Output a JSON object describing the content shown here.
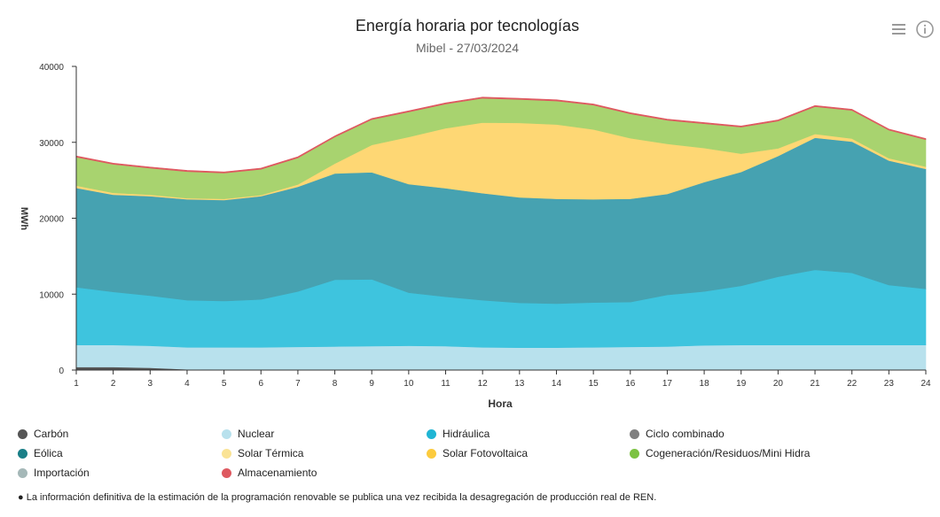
{
  "header": {
    "title": "Energía horaria por tecnologías",
    "subtitle": "Mibel - 27/03/2024"
  },
  "toolbar": {
    "menu_icon": "hamburger-menu-icon",
    "info_icon": "info-circle-icon"
  },
  "footnote": {
    "bullet": "●",
    "text": "La información definitiva de la estimación de la programación renovable se publica una vez recibida la desagregación de producción real de REN."
  },
  "chart_data": {
    "type": "area",
    "stacked": true,
    "xlabel": "Hora",
    "ylabel": "MWh",
    "x": [
      1,
      2,
      3,
      4,
      5,
      6,
      7,
      8,
      9,
      10,
      11,
      12,
      13,
      14,
      15,
      16,
      17,
      18,
      19,
      20,
      21,
      22,
      23,
      24
    ],
    "ylim": [
      0,
      40000
    ],
    "yticks": [
      0,
      10000,
      20000,
      30000,
      40000
    ],
    "grid": false,
    "legend_position": "bottom",
    "series": [
      {
        "name": "Carbón",
        "color": "#555555",
        "values": [
          400,
          400,
          300,
          100,
          50,
          50,
          50,
          50,
          50,
          50,
          50,
          50,
          50,
          50,
          50,
          50,
          50,
          50,
          50,
          50,
          50,
          50,
          50,
          50
        ]
      },
      {
        "name": "Nuclear",
        "color": "#b8e1ed",
        "values": [
          2900,
          2900,
          2900,
          2900,
          2950,
          2950,
          3000,
          3050,
          3100,
          3150,
          3100,
          2950,
          2900,
          2900,
          2950,
          3000,
          3050,
          3200,
          3250,
          3250,
          3250,
          3250,
          3250,
          3250
        ]
      },
      {
        "name": "Hidráulica",
        "color": "#3ec4de",
        "values": [
          7600,
          7000,
          6600,
          6200,
          6100,
          6300,
          7300,
          8800,
          8800,
          7000,
          6500,
          6200,
          5900,
          5800,
          5900,
          5900,
          6800,
          7100,
          7800,
          9000,
          9900,
          9500,
          7900,
          7400
        ]
      },
      {
        "name": "Ciclo combinado",
        "color": "#7f7f7f",
        "values": [
          0,
          0,
          0,
          0,
          0,
          0,
          0,
          0,
          0,
          0,
          0,
          0,
          0,
          0,
          0,
          0,
          0,
          0,
          0,
          0,
          0,
          0,
          0,
          0
        ]
      },
      {
        "name": "Eólica",
        "color": "#46a2b1",
        "values": [
          13100,
          12800,
          13100,
          13300,
          13300,
          13600,
          13800,
          14000,
          14100,
          14300,
          14300,
          14100,
          13900,
          13800,
          13600,
          13600,
          13300,
          14400,
          15000,
          15900,
          17400,
          17300,
          16400,
          15800
        ]
      },
      {
        "name": "Solar Térmica",
        "color": "#fae395",
        "values": [
          0,
          0,
          0,
          0,
          0,
          0,
          0,
          0,
          0,
          0,
          0,
          0,
          0,
          0,
          0,
          0,
          0,
          0,
          0,
          0,
          0,
          0,
          0,
          0
        ]
      },
      {
        "name": "Solar Fotovoltaica",
        "color": "#fed774",
        "values": [
          300,
          250,
          200,
          150,
          150,
          150,
          300,
          1300,
          3600,
          6200,
          7900,
          9300,
          9800,
          9800,
          9200,
          8000,
          6600,
          4500,
          2400,
          1000,
          500,
          400,
          300,
          300
        ]
      },
      {
        "name": "Cogeneración/Residuos/Mini Hidra",
        "color": "#a8d36f",
        "values": [
          3750,
          3750,
          3500,
          3500,
          3400,
          3400,
          3500,
          3500,
          3350,
          3300,
          3200,
          3200,
          3100,
          3100,
          3200,
          3200,
          3100,
          3200,
          3500,
          3600,
          3600,
          3700,
          3700,
          3550
        ]
      },
      {
        "name": "Importación",
        "color": "#9fb5b5",
        "values": [
          0,
          0,
          0,
          0,
          0,
          0,
          0,
          0,
          0,
          0,
          0,
          0,
          0,
          0,
          0,
          0,
          0,
          0,
          0,
          0,
          0,
          0,
          0,
          0
        ]
      },
      {
        "name": "Almacenamiento",
        "color": "#de5960",
        "values": [
          150,
          150,
          150,
          150,
          150,
          150,
          150,
          150,
          150,
          150,
          150,
          150,
          150,
          150,
          150,
          150,
          150,
          150,
          150,
          150,
          150,
          150,
          150,
          150
        ]
      }
    ],
    "legend": [
      {
        "label": "Carbón",
        "color": "#555555"
      },
      {
        "label": "Nuclear",
        "color": "#b8e1ed"
      },
      {
        "label": "Hidráulica",
        "color": "#20b5d4"
      },
      {
        "label": "Ciclo combinado",
        "color": "#7f7f7f"
      },
      {
        "label": "Eólica",
        "color": "#1a7f87"
      },
      {
        "label": "Solar Térmica",
        "color": "#fae395"
      },
      {
        "label": "Solar Fotovoltaica",
        "color": "#fccb3e"
      },
      {
        "label": "Cogeneración/Residuos/Mini Hidra",
        "color": "#7cc242"
      },
      {
        "label": "Importación",
        "color": "#a5b8b8"
      },
      {
        "label": "Almacenamiento",
        "color": "#de5960"
      }
    ]
  }
}
